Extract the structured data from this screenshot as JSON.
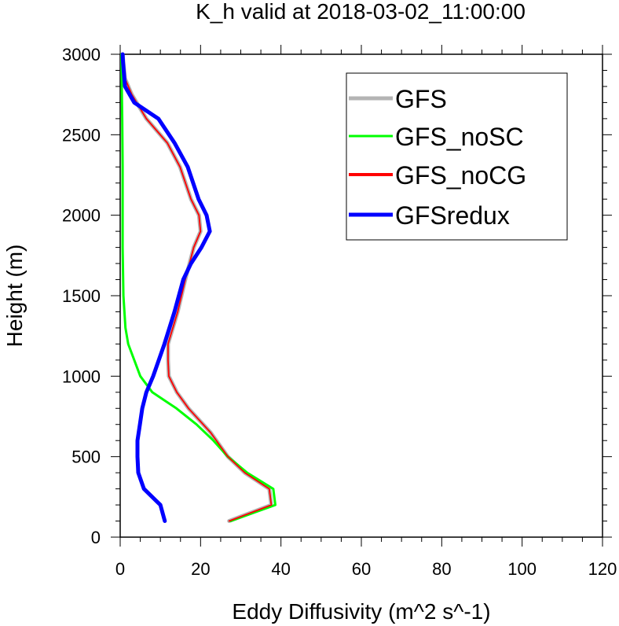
{
  "chart_data": {
    "type": "line",
    "title": "K_h valid at 2018-03-02_11:00:00",
    "xlabel": "Eddy Diffusivity (m^2 s^-1)",
    "ylabel": "Height (m)",
    "xlim": [
      0,
      120
    ],
    "ylim": [
      0,
      3000
    ],
    "xticks": [
      0,
      20,
      40,
      60,
      80,
      100,
      120
    ],
    "xtick_labels": [
      "0",
      "20",
      "40",
      "60",
      "80",
      "100",
      "120"
    ],
    "yticks": [
      0,
      500,
      1000,
      1500,
      2000,
      2500,
      3000
    ],
    "ytick_labels": [
      "0",
      "500",
      "1000",
      "1500",
      "2000",
      "2500",
      "3000"
    ],
    "grid": false,
    "legend_position": "top-right",
    "series": [
      {
        "name": "GFS",
        "color": "#b4b4b4",
        "points": [
          [
            27.1,
            100
          ],
          [
            37.6,
            200
          ],
          [
            37.1,
            300
          ],
          [
            31.0,
            400
          ],
          [
            26.8,
            500
          ],
          [
            22.5,
            650
          ],
          [
            17.0,
            800
          ],
          [
            14.1,
            900
          ],
          [
            12.1,
            1000
          ],
          [
            11.9,
            1100
          ],
          [
            11.9,
            1200
          ],
          [
            14.3,
            1400
          ],
          [
            16.2,
            1600
          ],
          [
            18.3,
            1800
          ],
          [
            20.0,
            1900
          ],
          [
            19.6,
            2000
          ],
          [
            17.6,
            2100
          ],
          [
            14.9,
            2300
          ],
          [
            11.7,
            2450
          ],
          [
            6.5,
            2600
          ],
          [
            2.9,
            2750
          ],
          [
            1.2,
            2850
          ],
          [
            0.8,
            2950
          ],
          [
            0.6,
            3000
          ]
        ]
      },
      {
        "name": "GFS_noSC",
        "color": "#00ff00",
        "points": [
          [
            27.5,
            100
          ],
          [
            38.6,
            200
          ],
          [
            38.1,
            300
          ],
          [
            31.6,
            400
          ],
          [
            26.8,
            500
          ],
          [
            23.2,
            600
          ],
          [
            19.0,
            700
          ],
          [
            14.0,
            800
          ],
          [
            8.0,
            900
          ],
          [
            5.0,
            1000
          ],
          [
            2.0,
            1200
          ],
          [
            1.3,
            1300
          ],
          [
            0.8,
            1500
          ],
          [
            0.6,
            1800
          ],
          [
            0.6,
            2300
          ],
          [
            0.5,
            2600
          ],
          [
            0.4,
            2800
          ],
          [
            0.3,
            3000
          ]
        ]
      },
      {
        "name": "GFS_noCG",
        "color": "#ff0000",
        "points": [
          [
            27.1,
            100
          ],
          [
            37.6,
            200
          ],
          [
            37.1,
            300
          ],
          [
            31.0,
            400
          ],
          [
            26.8,
            500
          ],
          [
            22.5,
            650
          ],
          [
            17.0,
            800
          ],
          [
            14.1,
            900
          ],
          [
            12.1,
            1000
          ],
          [
            11.9,
            1100
          ],
          [
            11.9,
            1200
          ],
          [
            14.3,
            1400
          ],
          [
            16.2,
            1600
          ],
          [
            18.3,
            1800
          ],
          [
            20.0,
            1900
          ],
          [
            19.6,
            2000
          ],
          [
            17.6,
            2100
          ],
          [
            14.9,
            2300
          ],
          [
            11.7,
            2450
          ],
          [
            6.5,
            2600
          ],
          [
            2.9,
            2750
          ],
          [
            1.2,
            2850
          ],
          [
            0.8,
            2950
          ],
          [
            0.6,
            3000
          ]
        ]
      },
      {
        "name": "GFSredux",
        "color": "#0000ff",
        "points": [
          [
            11.1,
            100
          ],
          [
            10.0,
            200
          ],
          [
            5.9,
            300
          ],
          [
            4.5,
            400
          ],
          [
            4.3,
            500
          ],
          [
            4.3,
            600
          ],
          [
            4.9,
            700
          ],
          [
            5.5,
            800
          ],
          [
            6.5,
            900
          ],
          [
            8.2,
            1000
          ],
          [
            11.0,
            1200
          ],
          [
            13.5,
            1400
          ],
          [
            15.7,
            1600
          ],
          [
            17.6,
            1700
          ],
          [
            20.2,
            1800
          ],
          [
            22.3,
            1900
          ],
          [
            21.5,
            2000
          ],
          [
            19.5,
            2100
          ],
          [
            16.8,
            2300
          ],
          [
            13.5,
            2450
          ],
          [
            9.5,
            2600
          ],
          [
            3.5,
            2700
          ],
          [
            1.2,
            2800
          ],
          [
            0.7,
            2950
          ],
          [
            0.6,
            3000
          ]
        ]
      }
    ]
  }
}
